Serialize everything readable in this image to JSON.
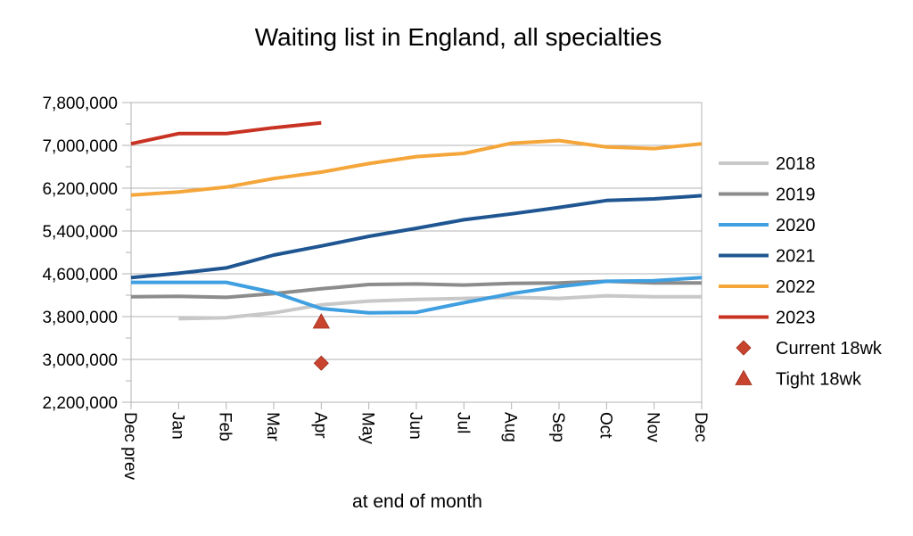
{
  "chart_data": {
    "type": "line",
    "title": "Waiting list in England, all specialties",
    "xlabel": "at end of month",
    "ylabel": "",
    "categories": [
      "Dec prev",
      "Jan",
      "Feb",
      "Mar",
      "Apr",
      "May",
      "Jun",
      "Jul",
      "Aug",
      "Sep",
      "Oct",
      "Nov",
      "Dec"
    ],
    "ylim": [
      2200000,
      7800000
    ],
    "yticks": [
      2200000,
      3000000,
      3800000,
      4600000,
      5400000,
      6200000,
      7000000,
      7800000
    ],
    "ytick_labels": [
      "2,200,000",
      "3,000,000",
      "3,800,000",
      "4,600,000",
      "5,400,000",
      "6,200,000",
      "7,000,000",
      "7,800,000"
    ],
    "grid": true,
    "legend_position": "right",
    "series": [
      {
        "name": "2018",
        "color": "#c8c8c8",
        "values": [
          null,
          3760000,
          3780000,
          3870000,
          4020000,
          4090000,
          4120000,
          4140000,
          4160000,
          4140000,
          4190000,
          4170000,
          4170000
        ]
      },
      {
        "name": "2019",
        "color": "#8c8c8c",
        "values": [
          4170000,
          4180000,
          4160000,
          4230000,
          4320000,
          4400000,
          4410000,
          4390000,
          4420000,
          4430000,
          4460000,
          4430000,
          4430000
        ]
      },
      {
        "name": "2020",
        "color": "#3f9fe0",
        "values": [
          4440000,
          4440000,
          4440000,
          4250000,
          3950000,
          3870000,
          3880000,
          4060000,
          4230000,
          4360000,
          4460000,
          4470000,
          4530000
        ]
      },
      {
        "name": "2021",
        "color": "#1f5692",
        "values": [
          4530000,
          4610000,
          4710000,
          4950000,
          5120000,
          5300000,
          5450000,
          5610000,
          5720000,
          5840000,
          5970000,
          6000000,
          6060000
        ]
      },
      {
        "name": "2022",
        "color": "#f5a63a",
        "values": [
          6070000,
          6130000,
          6220000,
          6380000,
          6500000,
          6660000,
          6790000,
          6850000,
          7040000,
          7090000,
          6970000,
          6940000,
          7030000
        ]
      },
      {
        "name": "2023",
        "color": "#c83222",
        "values": [
          7030000,
          7220000,
          7220000,
          7330000,
          7420000,
          null,
          null,
          null,
          null,
          null,
          null,
          null,
          null
        ]
      }
    ],
    "markers": [
      {
        "name": "Current 18wk",
        "shape": "diamond",
        "color": "#c8442e",
        "category": "Apr",
        "value": 2930000
      },
      {
        "name": "Tight 18wk",
        "shape": "triangle",
        "color": "#c8442e",
        "category": "Apr",
        "value": 3700000
      }
    ]
  }
}
